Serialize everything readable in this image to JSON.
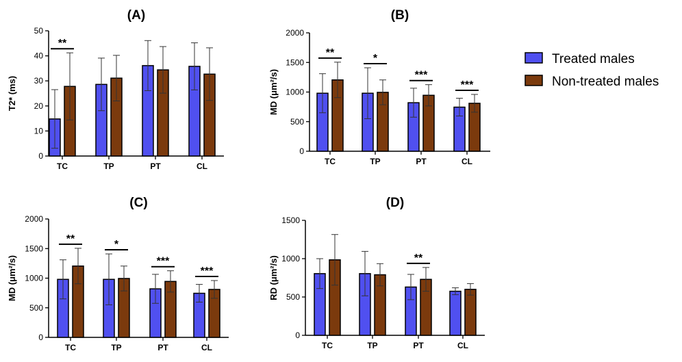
{
  "legend": {
    "items": [
      {
        "label": "Treated males",
        "color": "#5050f0"
      },
      {
        "label": "Non-treated males",
        "color": "#7b3a0d"
      }
    ]
  },
  "chart_data": [
    {
      "id": "A",
      "type": "bar",
      "title": "(A)",
      "ylabel": "T2* (ms)",
      "ylim": [
        0,
        50
      ],
      "yticks": [
        0,
        10,
        20,
        30,
        40,
        50
      ],
      "categories": [
        "TC",
        "TP",
        "PT",
        "CL"
      ],
      "series": [
        {
          "name": "Treated males",
          "values": [
            14.8,
            28.6,
            36.1,
            35.8
          ],
          "errors": [
            11.7,
            10.5,
            10.0,
            9.4
          ]
        },
        {
          "name": "Non-treated males",
          "values": [
            27.8,
            31.1,
            34.4,
            32.7
          ],
          "errors": [
            13.4,
            9.1,
            9.3,
            10.5
          ]
        }
      ],
      "significance": [
        {
          "category": "TC",
          "label": "**"
        }
      ]
    },
    {
      "id": "B",
      "type": "bar",
      "title": "(B)",
      "ylabel": "MD (μm²/s)",
      "ylim": [
        0,
        2000
      ],
      "yticks": [
        0,
        500,
        1000,
        1500,
        2000
      ],
      "categories": [
        "TC",
        "TP",
        "PT",
        "CL"
      ],
      "series": [
        {
          "name": "Treated males",
          "values": [
            980,
            980,
            820,
            745
          ],
          "errors": [
            330,
            430,
            245,
            150
          ]
        },
        {
          "name": "Non-treated males",
          "values": [
            1205,
            995,
            945,
            810
          ],
          "errors": [
            300,
            210,
            180,
            150
          ]
        }
      ],
      "significance": [
        {
          "category": "TC",
          "label": "**"
        },
        {
          "category": "TP",
          "label": "*"
        },
        {
          "category": "PT",
          "label": "***"
        },
        {
          "category": "CL",
          "label": "***"
        }
      ]
    },
    {
      "id": "C",
      "type": "bar",
      "title": "(C)",
      "ylabel": "MD (μm²/s)",
      "ylim": [
        0,
        2000
      ],
      "yticks": [
        0,
        500,
        1000,
        1500,
        2000
      ],
      "categories": [
        "TC",
        "TP",
        "PT",
        "CL"
      ],
      "series": [
        {
          "name": "Treated males",
          "values": [
            980,
            980,
            820,
            745
          ],
          "errors": [
            330,
            430,
            245,
            150
          ]
        },
        {
          "name": "Non-treated males",
          "values": [
            1205,
            995,
            945,
            810
          ],
          "errors": [
            300,
            210,
            180,
            150
          ]
        }
      ],
      "significance": [
        {
          "category": "TC",
          "label": "**"
        },
        {
          "category": "TP",
          "label": "*"
        },
        {
          "category": "PT",
          "label": "***"
        },
        {
          "category": "CL",
          "label": "***"
        }
      ]
    },
    {
      "id": "D",
      "type": "bar",
      "title": "(D)",
      "ylabel": "RD (μm²/s)",
      "ylim": [
        0,
        1500
      ],
      "yticks": [
        0,
        500,
        1000,
        1500
      ],
      "categories": [
        "TC",
        "TP",
        "PT",
        "CL"
      ],
      "series": [
        {
          "name": "Treated males",
          "values": [
            805,
            805,
            630,
            575
          ],
          "errors": [
            195,
            290,
            165,
            45
          ]
        },
        {
          "name": "Non-treated males",
          "values": [
            985,
            790,
            730,
            600
          ],
          "errors": [
            330,
            145,
            155,
            75
          ]
        }
      ],
      "significance": [
        {
          "category": "PT",
          "label": "**"
        }
      ]
    }
  ]
}
